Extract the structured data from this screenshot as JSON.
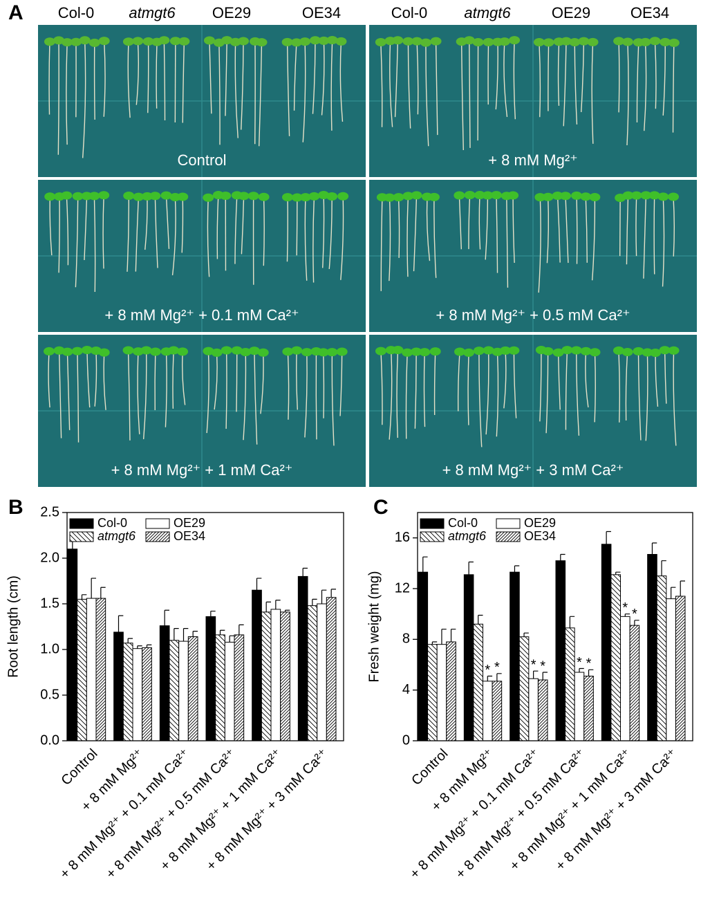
{
  "panel_a": {
    "label": "A",
    "genotypes": [
      "Col-0",
      "atmgt6",
      "OE29",
      "OE34"
    ],
    "conditions": [
      "Control",
      "+ 8 mM Mg²⁺",
      "+ 8 mM Mg²⁺ + 0.1 mM Ca²⁺",
      "+ 8 mM Mg²⁺ + 0.5 mM Ca²⁺",
      "+ 8 mM Mg²⁺ + 1 mM Ca²⁺",
      "+ 8 mM Mg²⁺ + 3 mM Ca²⁺"
    ]
  },
  "chart_data": [
    {
      "type": "bar",
      "panel_label": "B",
      "y_label": "Root length (cm)",
      "legend": "upper left",
      "categories": [
        "Control",
        "+ 8 mM Mg²⁺",
        "+ 8 mM Mg²⁺ + 0.1 mM Ca²⁺",
        "+ 8 mM Mg²⁺ + 0.5 mM Ca²⁺",
        "+ 8 mM Mg²⁺ + 1 mM Ca²⁺",
        "+ 8 mM Mg²⁺ + 3 mM Ca²⁺"
      ],
      "series": [
        {
          "name": "Col-0",
          "color": "#000000",
          "pattern": "solid",
          "values": [
            2.1,
            1.19,
            1.26,
            1.36,
            1.65,
            1.8
          ],
          "errors": [
            0.1,
            0.18,
            0.17,
            0.06,
            0.13,
            0.09
          ]
        },
        {
          "name": "atmgt6",
          "italic": true,
          "color": "#ffffff",
          "pattern": "hatch-back",
          "values": [
            1.55,
            1.07,
            1.1,
            1.16,
            1.41,
            1.48
          ],
          "errors": [
            0.05,
            0.05,
            0.13,
            0.05,
            0.11,
            0.07
          ]
        },
        {
          "name": "OE29",
          "color": "#ffffff",
          "pattern": "none",
          "values": [
            1.56,
            1.01,
            1.09,
            1.08,
            1.44,
            1.5
          ],
          "errors": [
            0.22,
            0.03,
            0.14,
            0.07,
            0.1,
            0.15
          ]
        },
        {
          "name": "OE34",
          "color": "#ffffff",
          "pattern": "hatch-forward",
          "values": [
            1.56,
            1.02,
            1.14,
            1.16,
            1.41,
            1.57
          ],
          "errors": [
            0.12,
            0.03,
            0.06,
            0.11,
            0.02,
            0.09
          ]
        }
      ],
      "ylim": [
        0,
        2.5
      ],
      "yticks": [
        {
          "value": 0,
          "label": "0.0"
        },
        {
          "value": 0.5,
          "label": "0.5"
        },
        {
          "value": 1,
          "label": "1.0"
        },
        {
          "value": 1.5,
          "label": "1.5"
        },
        {
          "value": 2,
          "label": "2.0"
        },
        {
          "value": 2.5,
          "label": "2.5"
        }
      ]
    },
    {
      "type": "bar",
      "panel_label": "C",
      "y_label": "Fresh weight (mg)",
      "legend": "upper left",
      "categories": [
        "Control",
        "+ 8 mM Mg²⁺",
        "+ 8 mM Mg²⁺ + 0.1 mM Ca²⁺",
        "+ 8 mM Mg²⁺ + 0.5 mM Ca²⁺",
        "+ 8 mM Mg²⁺ + 1 mM Ca²⁺",
        "+ 8 mM Mg²⁺ + 3 mM Ca²⁺"
      ],
      "series": [
        {
          "name": "Col-0",
          "color": "#000000",
          "pattern": "solid",
          "values": [
            13.3,
            13.1,
            13.3,
            14.2,
            15.5,
            14.7
          ],
          "errors": [
            1.2,
            1.0,
            0.5,
            0.5,
            1.0,
            0.9
          ]
        },
        {
          "name": "atmgt6",
          "italic": true,
          "color": "#ffffff",
          "pattern": "hatch-back",
          "values": [
            7.6,
            9.2,
            8.2,
            8.9,
            13.1,
            13.0
          ],
          "errors": [
            0.2,
            0.7,
            0.3,
            0.9,
            0.2,
            1.2
          ]
        },
        {
          "name": "OE29",
          "color": "#ffffff",
          "pattern": "none",
          "values": [
            7.6,
            4.7,
            4.9,
            5.4,
            9.8,
            11.2
          ],
          "errors": [
            1.2,
            0.4,
            0.6,
            0.3,
            0.2,
            0.9
          ],
          "marks": [
            null,
            "*",
            "*",
            "*",
            "*",
            null
          ]
        },
        {
          "name": "OE34",
          "color": "#ffffff",
          "pattern": "hatch-forward",
          "values": [
            7.8,
            4.7,
            4.8,
            5.1,
            9.1,
            11.4
          ],
          "errors": [
            1.0,
            0.6,
            0.6,
            0.5,
            0.4,
            1.2
          ],
          "marks": [
            null,
            "*",
            "*",
            "*",
            "*",
            null
          ]
        }
      ],
      "ylim": [
        0,
        18
      ],
      "yticks": [
        0,
        4,
        8,
        12,
        16
      ]
    }
  ]
}
